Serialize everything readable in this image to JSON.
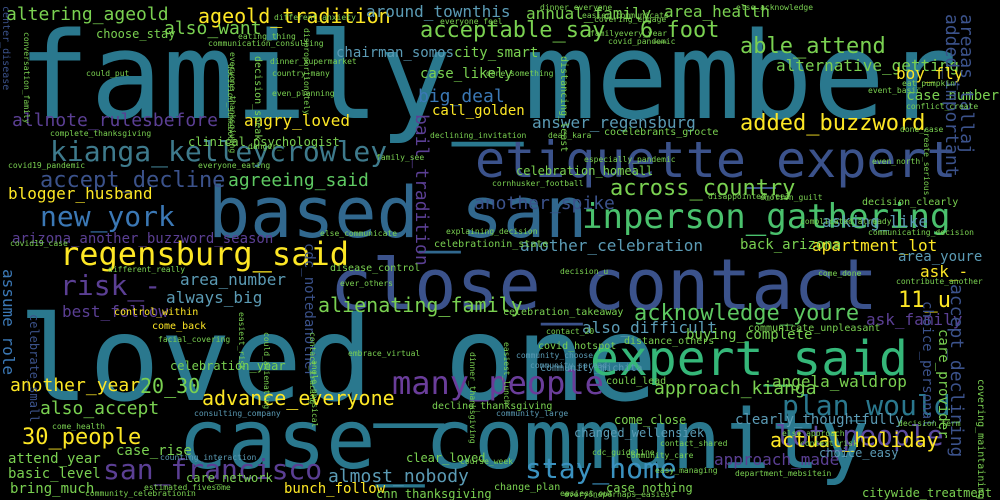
{
  "palette": {
    "background": "#000000",
    "teal": "#2a788e",
    "blue": "#3b528b",
    "green": "#22a884",
    "purple": "#482878",
    "darkpurple": "#440154",
    "lightgreen": "#7ad151",
    "yellow": "#fde725",
    "cyan": "#1f9e89",
    "mint": "#35b779"
  },
  "words": [
    {
      "text": "family_member",
      "color": "#2a788e",
      "rot": 0
    },
    {
      "text": "loved_one",
      "color": "#2a788e",
      "rot": 0
    },
    {
      "text": "case_community",
      "color": "#2a788e",
      "rot": 0
    },
    {
      "text": "close_contact",
      "color": "#3b528b",
      "rot": 0
    },
    {
      "text": "based_san",
      "color": "#31688e",
      "rot": 0
    },
    {
      "text": "etiquette_expert",
      "color": "#3b528b",
      "rot": 0
    },
    {
      "text": "expert_said",
      "color": "#35b779",
      "rot": 0
    },
    {
      "text": "inperson_gathering",
      "color": "#4ac16d",
      "rot": 0
    },
    {
      "text": "regensburg_said",
      "color": "#fde725",
      "rot": 0
    },
    {
      "text": "kianga_kelleycrowley",
      "color": "#3e7a8c",
      "rot": 0
    },
    {
      "text": "new_york",
      "color": "#3b78b5",
      "rot": 0
    },
    {
      "text": "many_people",
      "color": "#6a3d9a",
      "rot": 0
    },
    {
      "text": "plan_would",
      "color": "#2a788e",
      "rot": 0
    },
    {
      "text": "lot_people",
      "color": "#5b4aa0",
      "rot": 0
    },
    {
      "text": "stay_home",
      "color": "#3b92c0",
      "rot": 0
    },
    {
      "text": "san_francisco",
      "color": "#5b3f94",
      "rot": 0
    },
    {
      "text": "risk_-",
      "color": "#5b3f94",
      "rot": 0
    },
    {
      "text": "accept_decline",
      "color": "#3b528b",
      "rot": 0
    },
    {
      "text": "acceptable_say",
      "color": "#7ad151",
      "rot": 0
    },
    {
      "text": "added_buzzword",
      "color": "#fde725",
      "rot": 0
    },
    {
      "text": "across_country",
      "color": "#7ad151",
      "rot": 0
    },
    {
      "text": "acknowledge_youre",
      "color": "#5ec962",
      "rot": 0
    },
    {
      "text": "actual_holiday",
      "color": "#fde725",
      "rot": 0
    },
    {
      "text": "ageold_tradition",
      "color": "#fde725",
      "rot": 0
    },
    {
      "text": "altering_ageold",
      "color": "#7ad151",
      "rot": 0
    },
    {
      "text": "able_attend",
      "color": "#7ad151",
      "rot": 0
    },
    {
      "text": "also_want",
      "color": "#7ad151",
      "rot": 0
    },
    {
      "text": "6_foot",
      "color": "#7ad151",
      "rot": 0
    },
    {
      "text": "30_people",
      "color": "#fde725",
      "rot": 0
    },
    {
      "text": "20_30",
      "color": "#7ad151",
      "rot": 0
    },
    {
      "text": "advance_everyone",
      "color": "#fde725",
      "rot": 0
    },
    {
      "text": "alienating_family",
      "color": "#7ad151",
      "rot": 0
    },
    {
      "text": "almost_nobody",
      "color": "#5b9bb5",
      "rot": 0
    },
    {
      "text": "agreeing_said",
      "color": "#5ec962",
      "rot": 0
    },
    {
      "text": "allnote_rulesbefore",
      "color": "#5b3f94",
      "rot": 0
    },
    {
      "text": "another_spike",
      "color": "#3b528b",
      "rot": 0
    },
    {
      "text": "big_deal",
      "color": "#3b78b5",
      "rot": 0
    },
    {
      "text": "angry_loved",
      "color": "#fde725",
      "rot": 0
    },
    {
      "text": "also_accept",
      "color": "#7ad151",
      "rot": 0
    },
    {
      "text": "another_year",
      "color": "#fde725",
      "rot": 0
    },
    {
      "text": "always_big",
      "color": "#5b9bb5",
      "rot": 0
    },
    {
      "text": "area_number",
      "color": "#5b9bb5",
      "rot": 0
    },
    {
      "text": "11_u",
      "color": "#fde725",
      "rot": 0
    },
    {
      "text": "apartment_lot",
      "color": "#fde725",
      "rot": 0
    },
    {
      "text": "back_arizona",
      "color": "#7ad151",
      "rot": 0
    },
    {
      "text": "attend_year",
      "color": "#7ad151",
      "rot": 0
    },
    {
      "text": "basic_level",
      "color": "#7ad151",
      "rot": 0
    },
    {
      "text": "bring_much",
      "color": "#7ad151",
      "rot": 0
    },
    {
      "text": "bunch_follow",
      "color": "#fde725",
      "rot": 0
    },
    {
      "text": "case_rise",
      "color": "#7ad151",
      "rot": 0
    },
    {
      "text": "approach_kianga",
      "color": "#7ad151",
      "rot": 0
    },
    {
      "text": "approach_made",
      "color": "#5b3f94",
      "rot": 0
    },
    {
      "text": "angela_waldrop",
      "color": "#7ad151",
      "rot": 0
    },
    {
      "text": "area_health",
      "color": "#7ad151",
      "rot": 0
    },
    {
      "text": "annual_family",
      "color": "#7ad151",
      "rot": 0
    },
    {
      "text": "around_townthis",
      "color": "#5b9bb5",
      "rot": 0
    },
    {
      "text": "alternative_getting",
      "color": "#7ad151",
      "rot": 0
    },
    {
      "text": "boy_fly",
      "color": "#fde725",
      "rot": 0
    },
    {
      "text": "case_number",
      "color": "#7ad151",
      "rot": 0
    },
    {
      "text": "asking_like",
      "color": "#5b9bb5",
      "rot": 0
    },
    {
      "text": "area_youre",
      "color": "#5b9bb5",
      "rot": 0
    },
    {
      "text": "ask_-",
      "color": "#fde725",
      "rot": 0
    },
    {
      "text": "ask_family",
      "color": "#5b3f94",
      "rot": 0
    },
    {
      "text": "blogger_husband",
      "color": "#fde725",
      "rot": 0
    },
    {
      "text": "arizona_another_buzzword_season",
      "color": "#5b3f94",
      "rot": 0
    },
    {
      "text": "best_follow",
      "color": "#5b3f94",
      "rot": 0
    },
    {
      "text": "answer_regensburg",
      "color": "#5b9bb5",
      "rot": 0
    },
    {
      "text": "another_celebration",
      "color": "#5b9bb5",
      "rot": 0
    },
    {
      "text": "also_difficult",
      "color": "#5b9bb5",
      "rot": 0
    },
    {
      "text": "choose_stay",
      "color": "#7ad151",
      "rot": 0
    },
    {
      "text": "city_smart",
      "color": "#7ad151",
      "rot": 0
    },
    {
      "text": "case_likely",
      "color": "#7ad151",
      "rot": 0
    },
    {
      "text": "call_golden",
      "color": "#fde725",
      "rot": 0
    },
    {
      "text": "chairman_somos",
      "color": "#5b9bb5",
      "rot": 0
    },
    {
      "text": "celebration_year",
      "color": "#7ad151",
      "rot": 0
    },
    {
      "text": "buying_complete",
      "color": "#7ad151",
      "rot": 0
    },
    {
      "text": "added_important",
      "color": "#3b528b",
      "rot": -90
    },
    {
      "text": "accept_declining",
      "color": "#3b528b",
      "rot": -90
    },
    {
      "text": "areaas_tallaj",
      "color": "#3b528b",
      "rot": -90
    },
    {
      "text": "bail_tradition",
      "color": "#5b3f94",
      "rot": -90
    },
    {
      "text": "assume_role",
      "color": "#3b78b5",
      "rot": -90
    },
    {
      "text": "cdc_notedanother",
      "color": "#3b528b",
      "rot": -90
    },
    {
      "text": "celebrate_small",
      "color": "#3b528b",
      "rot": -90
    },
    {
      "text": "choice_personal",
      "color": "#3b528b",
      "rot": -90
    },
    {
      "text": "care_provider",
      "color": "#7ad151",
      "rot": -90
    },
    {
      "text": "clearly_thoughtfully",
      "color": "#5b9bb5",
      "rot": 0
    },
    {
      "text": "choice_easy",
      "color": "#5b9bb5",
      "rot": 0
    },
    {
      "text": "changed_wellensiek",
      "color": "#5b9bb5",
      "rot": 0
    },
    {
      "text": "clear_loved",
      "color": "#7ad151",
      "rot": 0
    },
    {
      "text": "care_network",
      "color": "#7ad151",
      "rot": 0
    },
    {
      "text": "cnn_thanksgiving",
      "color": "#7ad151",
      "rot": 0
    },
    {
      "text": "citywide_treatment",
      "color": "#7ad151",
      "rot": 0
    },
    {
      "text": "case_nothing",
      "color": "#7ad151",
      "rot": 0
    },
    {
      "text": "clinical_psychologist",
      "color": "#7ad151",
      "rot": 0
    },
    {
      "text": "celebration_homeall",
      "color": "#7ad151",
      "rot": 0
    },
    {
      "text": "celebrationin_state",
      "color": "#7ad151",
      "rot": 0
    },
    {
      "text": "come_back",
      "color": "#fde725",
      "rot": 0
    },
    {
      "text": "control_within",
      "color": "#fde725",
      "rot": 0
    },
    {
      "text": "communicate_unpleasant",
      "color": "#7ad151",
      "rot": 0
    },
    {
      "text": "communicating_decision",
      "color": "#7ad151",
      "rot": 0
    },
    {
      "text": "celebration_takeaway",
      "color": "#7ad151",
      "rot": 0
    },
    {
      "text": "covid_hotspot",
      "color": "#7ad151",
      "rot": 0
    },
    {
      "text": "could_lead",
      "color": "#7ad151",
      "rot": 0
    },
    {
      "text": "come_close",
      "color": "#7ad151",
      "rot": 0
    },
    {
      "text": "contact_20",
      "color": "#7ad151",
      "rot": 0
    },
    {
      "text": "community_care",
      "color": "#7ad151",
      "rot": 0
    },
    {
      "text": "decline_thanksgiving",
      "color": "#7ad151",
      "rot": 0
    },
    {
      "text": "distance_others",
      "color": "#7ad151",
      "rot": 0
    },
    {
      "text": "decision_clearly",
      "color": "#7ad151",
      "rot": 0
    },
    {
      "text": "community_michita",
      "color": "#5b9bb5",
      "rot": 0
    },
    {
      "text": "community_spread",
      "color": "#5b9bb5",
      "rot": 0
    },
    {
      "text": "community_choose",
      "color": "#5b9bb5",
      "rot": 0
    },
    {
      "text": "community_large",
      "color": "#5b9bb5",
      "rot": 0
    },
    {
      "text": "consulting_company",
      "color": "#5b9bb5",
      "rot": 0
    },
    {
      "text": "counting_interaction",
      "color": "#5b9bb5",
      "rot": 0
    },
    {
      "text": "come_health",
      "color": "#7ad151",
      "rot": 0
    },
    {
      "text": "country_many",
      "color": "#7ad151",
      "rot": 0
    },
    {
      "text": "context_risk",
      "color": "#7ad151",
      "rot": 0
    },
    {
      "text": "conflict_create",
      "color": "#7ad151",
      "rot": 0
    },
    {
      "text": "done_case",
      "color": "#7ad151",
      "rot": 0
    },
    {
      "text": "center_disease",
      "color": "#3b528b",
      "rot": -90
    },
    {
      "text": "covid19_case",
      "color": "#7ad151",
      "rot": 0
    },
    {
      "text": "covid19_pandemic",
      "color": "#7ad151",
      "rot": 0
    },
    {
      "text": "covid_pandemic",
      "color": "#7ad151",
      "rot": 0
    },
    {
      "text": "covering_engage",
      "color": "#7ad151",
      "rot": 0
    },
    {
      "text": "communication_consulting",
      "color": "#7ad151",
      "rot": 0
    },
    {
      "text": "declining_invitation",
      "color": "#7ad151",
      "rot": 0
    },
    {
      "text": "complete_thanksgiving",
      "color": "#7ad151",
      "rot": 0
    },
    {
      "text": "eat_pumpkin",
      "color": "#7ad151",
      "rot": 0
    },
    {
      "text": "event_basic",
      "color": "#7ad151",
      "rot": 0
    },
    {
      "text": "disappointed_feel",
      "color": "#7ad151",
      "rot": 0
    },
    {
      "text": "emotion_guilt",
      "color": "#7ad151",
      "rot": 0
    },
    {
      "text": "dinner_supermarket",
      "color": "#7ad151",
      "rot": 0
    },
    {
      "text": "dinner_everyone",
      "color": "#7ad151",
      "rot": 0
    },
    {
      "text": "decision_speak",
      "color": "#7ad151",
      "rot": -90
    },
    {
      "text": "easiest_out",
      "color": "#7ad151",
      "rot": 0
    },
    {
      "text": "easy_managing",
      "color": "#7ad151",
      "rot": 0
    },
    {
      "text": "decision_term",
      "color": "#7ad151",
      "rot": 0
    },
    {
      "text": "different_really",
      "color": "#7ad151",
      "rot": 0
    },
    {
      "text": "disease_control",
      "color": "#7ad151",
      "rot": 0
    },
    {
      "text": "explaining_decision",
      "color": "#7ad151",
      "rot": 0
    },
    {
      "text": "cornhusker_football",
      "color": "#7ad151",
      "rot": 0
    },
    {
      "text": "cocelebrants_grocte",
      "color": "#7ad151",
      "rot": 0
    },
    {
      "text": "course_week",
      "color": "#7ad151",
      "rot": 0
    },
    {
      "text": "cdc_guideline",
      "color": "#7ad151",
      "rot": 0
    },
    {
      "text": "change_plan",
      "color": "#7ad151",
      "rot": 0
    },
    {
      "text": "department_mebsitein",
      "color": "#7ad151",
      "rot": 0
    },
    {
      "text": "community_celebrationin",
      "color": "#7ad151",
      "rot": 0
    },
    {
      "text": "estimated_fivesome",
      "color": "#7ad151",
      "rot": 0
    },
    {
      "text": "even_planning",
      "color": "#7ad151",
      "rot": 0
    },
    {
      "text": "eating_thing",
      "color": "#7ad151",
      "rot": 0
    },
    {
      "text": "easier_communicate",
      "color": "#7ad151",
      "rot": 0
    },
    {
      "text": "different_anxiety",
      "color": "#7ad151",
      "rot": 0
    },
    {
      "text": "else_acknowledge",
      "color": "#7ad151",
      "rot": 0
    },
    {
      "text": "ever_others",
      "color": "#7ad151",
      "rot": 0
    },
    {
      "text": "everyone_feel",
      "color": "#7ad151",
      "rot": 0
    },
    {
      "text": "familyevery_year",
      "color": "#7ad151",
      "rot": 0
    },
    {
      "text": "else_approach",
      "color": "#7ad151",
      "rot": 0
    },
    {
      "text": "family_see",
      "color": "#7ad151",
      "rot": 0
    },
    {
      "text": "everyone_eating",
      "color": "#7ad151",
      "rot": 0
    },
    {
      "text": "facial_covering",
      "color": "#7ad151",
      "rot": 0
    },
    {
      "text": "especially_pandemic",
      "color": "#7ad151",
      "rot": 0
    },
    {
      "text": "complicated_already",
      "color": "#7ad151",
      "rot": 0
    },
    {
      "text": "contribute_another",
      "color": "#7ad151",
      "rot": 0
    },
    {
      "text": "distancing_least",
      "color": "#7ad151",
      "rot": -90
    },
    {
      "text": "embrace_virtual",
      "color": "#7ad151",
      "rot": 0
    },
    {
      "text": "everyoneperhaps_easiest",
      "color": "#7ad151",
      "rot": 0
    },
    {
      "text": "covering_maintaining",
      "color": "#7ad151",
      "rot": -90
    },
    {
      "text": "could_put",
      "color": "#7ad151",
      "rot": 0
    },
    {
      "text": "create_serious",
      "color": "#7ad151",
      "rot": -90
    },
    {
      "text": "dear_kara",
      "color": "#7ad151",
      "rot": 0
    },
    {
      "text": "danger_-",
      "color": "#7ad151",
      "rot": 0
    },
    {
      "text": "decision_u",
      "color": "#7ad151",
      "rot": 0
    },
    {
      "text": "easiest_risk",
      "color": "#7ad151",
      "rot": -90
    },
    {
      "text": "contact_shared",
      "color": "#7ad151",
      "rot": 0
    },
    {
      "text": "come_done",
      "color": "#7ad151",
      "rot": 0
    },
    {
      "text": "even_north",
      "color": "#7ad151",
      "rot": 0
    },
    {
      "text": "else_communicate",
      "color": "#7ad151",
      "rot": 0
    },
    {
      "text": "angle_physical",
      "color": "#7ad151",
      "rot": -90
    },
    {
      "text": "done_something",
      "color": "#7ad151",
      "rot": 0
    },
    {
      "text": "disproportionately",
      "color": "#7ad151",
      "rot": -90
    },
    {
      "text": "contact_tracing",
      "color": "#7ad151",
      "rot": -90
    },
    {
      "text": "everyone_thanksgiving",
      "color": "#7ad151",
      "rot": -90
    },
    {
      "text": "dinner_thanksgiving",
      "color": "#7ad151",
      "rot": -90
    },
    {
      "text": "decision_somebody",
      "color": "#7ad151",
      "rot": -90
    },
    {
      "text": "conversation_family",
      "color": "#7ad151",
      "rot": -90
    },
    {
      "text": "could_alienating",
      "color": "#7ad151",
      "rot": -90
    },
    {
      "text": "easiest_lunch",
      "color": "#7ad151",
      "rot": -90
    }
  ]
}
